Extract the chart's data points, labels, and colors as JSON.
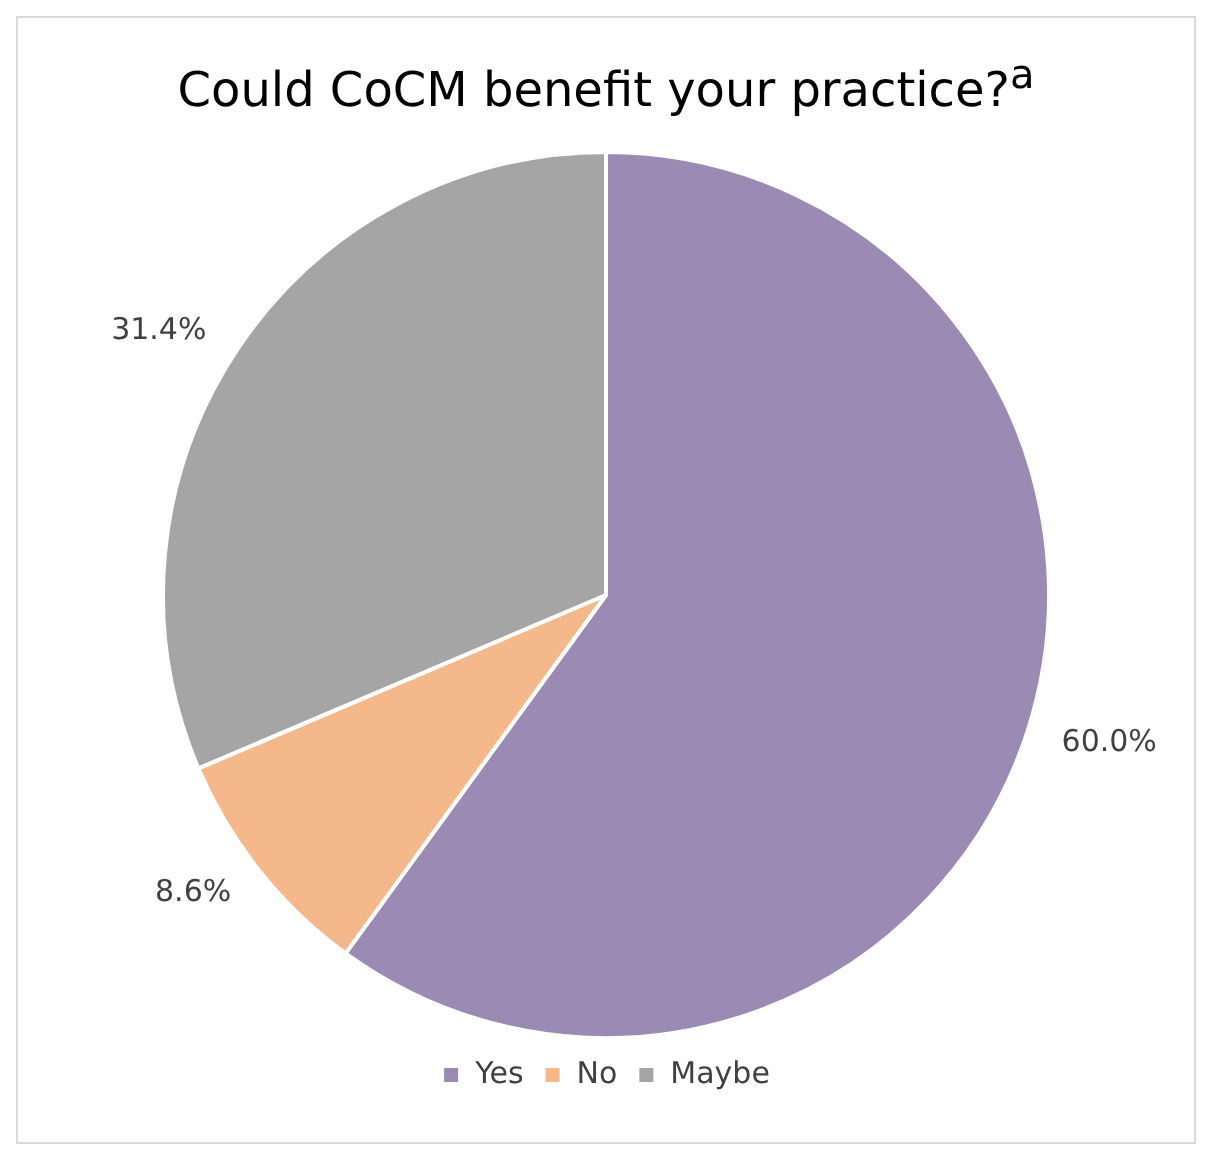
{
  "chart_data": {
    "type": "pie",
    "title": "Could CoCM benefit your practice?$^{a}$",
    "categories": [
      "Yes",
      "No",
      "Maybe"
    ],
    "values": [
      60.0,
      8.6,
      31.4
    ],
    "colors": [
      "#9b8bb4",
      "#f4b88a",
      "#a5a5a5"
    ],
    "value_labels": [
      "60.0%",
      "8.6%",
      "31.4%"
    ],
    "legend": "bottom"
  }
}
